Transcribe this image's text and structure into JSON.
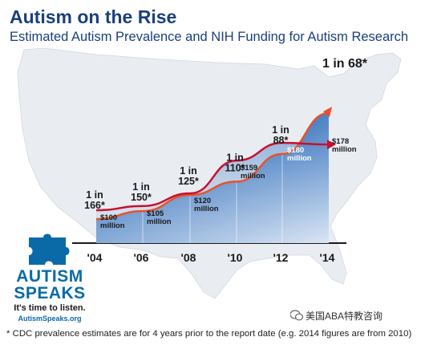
{
  "header": {
    "title": "Autism on the Rise",
    "subtitle": "Estimated Autism Prevalence and NIH Funding for Autism Research"
  },
  "footnote": "* CDC prevalence estimates are for 4 years prior to the report date (e.g. 2014 figures are from 2010)",
  "logo": {
    "line1": "AUTISM",
    "line2": "SPEAKS",
    "tagline": "It's time to listen.",
    "website": "AutismSpeaks.org"
  },
  "watermark": "美国ABA特教咨询",
  "colors": {
    "title": "#1b3f7c",
    "prevalence_line": "#e8522a",
    "funding_fill_dark": "#0d3a7d",
    "funding_fill_light": "#d6e3f3",
    "map": "#e9edf2",
    "logo": "#0a6aa8"
  },
  "chart_data": {
    "type": "area",
    "title": "Autism on the Rise",
    "subtitle": "Estimated Autism Prevalence and NIH Funding for Autism Research",
    "categories": [
      "'04",
      "'06",
      "'08",
      "'10",
      "'12",
      "'14"
    ],
    "series": [
      {
        "name": "Estimated Autism Prevalence",
        "values": [
          "1 in 166*",
          "1 in 150*",
          "1 in 125*",
          "1 in 110*",
          "1 in 88*",
          "1 in 68*"
        ],
        "per_1000": [
          6.02,
          6.67,
          8.0,
          9.09,
          11.36,
          14.71
        ]
      },
      {
        "name": "NIH Funding for Autism Research",
        "unit": "million",
        "values": [
          100,
          105,
          120,
          159,
          180,
          178
        ],
        "labels": [
          "$100 million",
          "$105 million",
          "$120 million",
          "$159 million",
          "$180 million",
          "$178 million"
        ]
      }
    ],
    "grid": false
  }
}
